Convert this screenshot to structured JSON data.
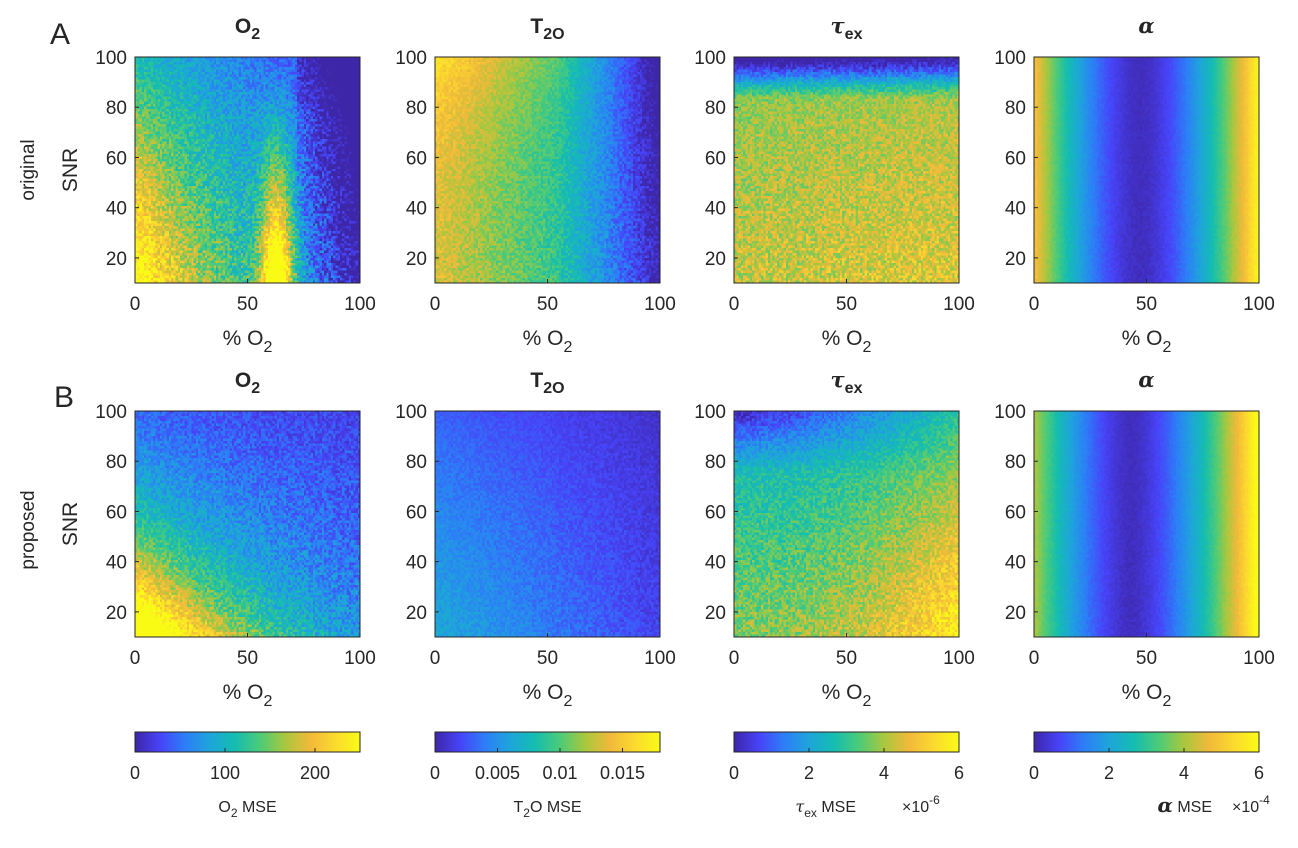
{
  "colors": {
    "parula": [
      "#3e26a8",
      "#4743f8",
      "#2c7ef7",
      "#1ea5da",
      "#14bdb0",
      "#4ccb78",
      "#a9c73e",
      "#f1b93a",
      "#fcda2e",
      "#f9fb15"
    ],
    "axis": "#262626"
  },
  "figure": {
    "panel_letters": [
      "A",
      "B"
    ],
    "row_labels": [
      "original",
      "proposed"
    ]
  },
  "chart_data": {
    "type": "heatmap",
    "description_grid": "4 columns x 2 rows of heatmaps; x = % O2 (0-100), y = SNR (10-100)",
    "x_label_prefix": "% O",
    "x_label_sub": "2",
    "y_label": "SNR",
    "xlim": [
      0,
      100
    ],
    "ylim": [
      10,
      100
    ],
    "x_ticks": [
      0,
      50,
      100
    ],
    "y_ticks": [
      20,
      40,
      60,
      80,
      100
    ],
    "columns": [
      {
        "title_main": "O",
        "title_sub": "2",
        "clim": [
          0,
          250
        ],
        "cb_ticks": [
          "0",
          "100",
          "200"
        ],
        "cb_tick_values": [
          0,
          100,
          200
        ],
        "cb_label_main": "O",
        "cb_label_sub": "2",
        "cb_label_rest": " MSE",
        "cb_exponent": ""
      },
      {
        "title_main": "T",
        "title_sub": "2O",
        "clim": [
          0,
          0.018
        ],
        "cb_ticks": [
          "0",
          "0.005",
          "0.01",
          "0.015"
        ],
        "cb_tick_values": [
          0,
          0.005,
          0.01,
          0.015
        ],
        "cb_label_main": "T",
        "cb_label_sub": "2",
        "cb_label_rest": "O MSE",
        "cb_exponent": ""
      },
      {
        "title_main": "τ",
        "title_sub": "ex",
        "clim": [
          0,
          6
        ],
        "cb_ticks": [
          "0",
          "2",
          "4",
          "6"
        ],
        "cb_tick_values": [
          0,
          2,
          4,
          6
        ],
        "cb_label_main": "τ",
        "cb_label_sub": "ex",
        "cb_label_rest": " MSE",
        "cb_exponent_base": "×10",
        "cb_exponent_power": "-6"
      },
      {
        "title_main": "α",
        "title_sub": "",
        "clim": [
          0,
          6
        ],
        "cb_ticks": [
          "0",
          "2",
          "4",
          "6"
        ],
        "cb_tick_values": [
          0,
          2,
          4,
          6
        ],
        "cb_label_main": "α",
        "cb_label_sub": "",
        "cb_label_rest": " MSE",
        "cb_exponent_base": "×10",
        "cb_exponent_power": "-4"
      }
    ],
    "rows": [
      "original",
      "proposed"
    ],
    "pattern_notes": {
      "original_O2": "high error at low %O2 and low SNR, hot spot near 60-65% O2 at low SNR, low error at high %O2 / high SNR",
      "original_T2O": "high error at low %O2 decreasing toward high %O2",
      "original_tex": "moderate-high error everywhere, lowest at high SNR top band",
      "original_alpha": "vertical bands: high at edges, minimum near 45-55% O2",
      "proposed_O2": "high only at low %O2 / low SNR corner",
      "proposed_T2O": "uniformly low, slight rise at low %O2 low SNR",
      "proposed_tex": "low at top, rising at high %O2 and low SNR",
      "proposed_alpha": "vertical bands similar to original, minimum near 45%"
    }
  }
}
